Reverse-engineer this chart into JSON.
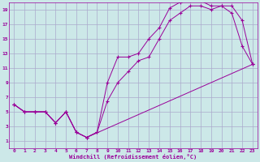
{
  "xlabel": "Windchill (Refroidissement éolien,°C)",
  "bg_color": "#cce8e8",
  "grid_color": "#aaaacc",
  "line_color": "#990099",
  "xlim": [
    -0.5,
    23.5
  ],
  "ylim": [
    0,
    20
  ],
  "xticks": [
    0,
    1,
    2,
    3,
    4,
    5,
    6,
    7,
    8,
    9,
    10,
    11,
    12,
    13,
    14,
    15,
    16,
    17,
    18,
    19,
    20,
    21,
    22,
    23
  ],
  "yticks": [
    1,
    3,
    5,
    7,
    9,
    11,
    13,
    15,
    17,
    19
  ],
  "line1_x": [
    0,
    1,
    2,
    3,
    4,
    5,
    6,
    7,
    8,
    9,
    10,
    11,
    12,
    13,
    14,
    15,
    16,
    17,
    18,
    19,
    20,
    21,
    22,
    23
  ],
  "line1_y": [
    6.0,
    5.0,
    5.0,
    5.0,
    3.5,
    5.0,
    2.2,
    1.5,
    2.2,
    9.0,
    12.5,
    12.5,
    13.0,
    15.0,
    16.5,
    19.2,
    20.0,
    20.2,
    20.2,
    19.5,
    19.5,
    19.5,
    17.5,
    11.5
  ],
  "line2_x": [
    0,
    1,
    2,
    3,
    4,
    5,
    6,
    7,
    8,
    9,
    10,
    11,
    12,
    13,
    14,
    15,
    16,
    17,
    18,
    19,
    20,
    21,
    22,
    23
  ],
  "line2_y": [
    6.0,
    5.0,
    5.0,
    5.0,
    3.5,
    5.0,
    2.2,
    1.5,
    2.2,
    6.5,
    9.0,
    10.5,
    12.0,
    12.5,
    15.0,
    17.5,
    18.5,
    19.5,
    19.5,
    19.0,
    19.5,
    18.5,
    14.0,
    11.5
  ],
  "line3_x": [
    0,
    1,
    2,
    3,
    4,
    5,
    6,
    7,
    23
  ],
  "line3_y": [
    6.0,
    5.0,
    5.0,
    5.0,
    3.5,
    5.0,
    2.2,
    1.5,
    11.5
  ]
}
